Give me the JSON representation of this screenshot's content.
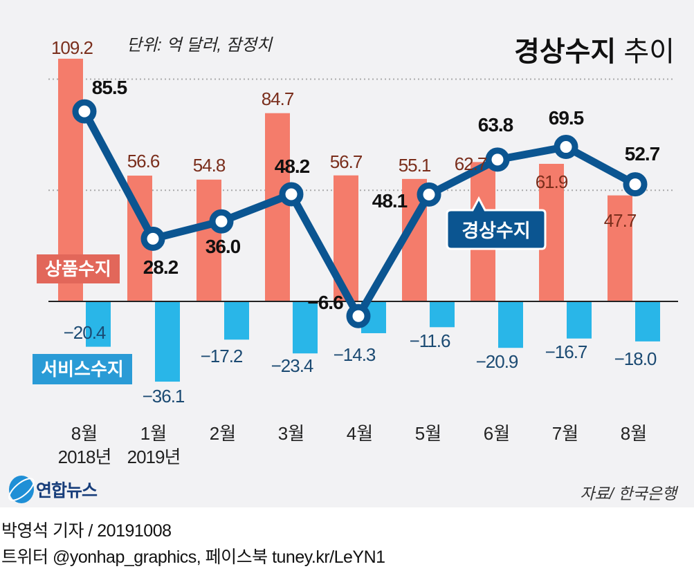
{
  "title": {
    "bold": "경상수지",
    "regular": "추이"
  },
  "unit_note": "단위: 억 달러, 잠정치",
  "source": "자료/ 한국은행",
  "logo_text": "연합뉴스",
  "credits": {
    "line1": "박영석 기자 /  20191008",
    "line2": "트위터 @yonhap_graphics, 페이스북 tuney.kr/LeYN1"
  },
  "colors": {
    "background": "#f2f2f4",
    "goods": "#f47c6b",
    "goods_label_bg": "#e2675a",
    "goods_value_text": "#7a2e1c",
    "services": "#29b6e8",
    "services_label_bg": "#2a9bd6",
    "services_value_text": "#1b4a72",
    "current_account": "#0b5591"
  },
  "chart_data": {
    "type": "bar+line",
    "categories": [
      {
        "month": "8월",
        "year": "2018년"
      },
      {
        "month": "1월",
        "year": "2019년"
      },
      {
        "month": "2월",
        "year": ""
      },
      {
        "month": "3월",
        "year": ""
      },
      {
        "month": "4월",
        "year": ""
      },
      {
        "month": "5월",
        "year": ""
      },
      {
        "month": "6월",
        "year": ""
      },
      {
        "month": "7월",
        "year": ""
      },
      {
        "month": "8월",
        "year": ""
      }
    ],
    "series": [
      {
        "name": "상품수지",
        "type": "bar",
        "values": [
          109.2,
          56.6,
          54.8,
          84.7,
          56.7,
          55.1,
          62.7,
          61.9,
          47.7
        ],
        "labels": [
          "109.2",
          "56.6",
          "54.8",
          "84.7",
          "56.7",
          "55.1",
          "62.7",
          "61.9",
          "47.7"
        ]
      },
      {
        "name": "서비스수지",
        "type": "bar",
        "values": [
          -20.4,
          -36.1,
          -17.2,
          -23.4,
          -14.3,
          -11.6,
          -20.9,
          -16.7,
          -18.0
        ],
        "labels": [
          "−20.4",
          "−36.1",
          "−17.2",
          "−23.4",
          "−14.3",
          "−11.6",
          "−20.9",
          "−16.7",
          "−18.0"
        ]
      },
      {
        "name": "경상수지",
        "type": "line",
        "values": [
          85.5,
          28.2,
          36.0,
          48.2,
          -6.6,
          48.1,
          63.8,
          69.5,
          52.7
        ],
        "labels": [
          "85.5",
          "28.2",
          "36.0",
          "48.2",
          "−6.6",
          "48.1",
          "63.8",
          "69.5",
          "52.7"
        ]
      }
    ],
    "gridlines": [
      50,
      100
    ],
    "ylim": [
      -40,
      115
    ],
    "legend": "inline labels"
  }
}
